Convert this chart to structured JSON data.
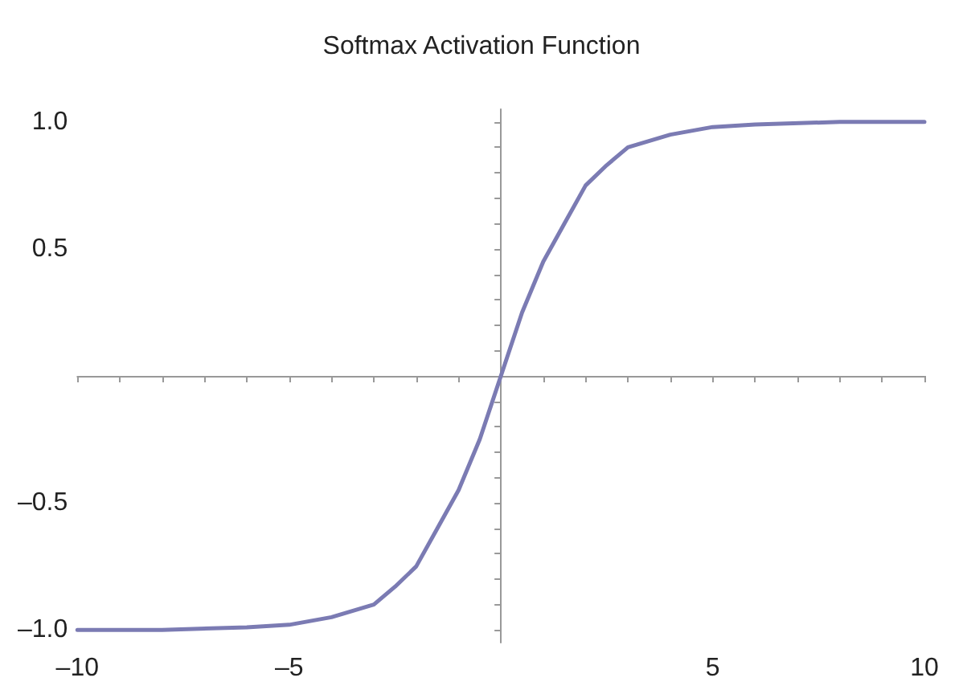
{
  "chart_data": {
    "type": "line",
    "title": "Softmax Activation Function",
    "x": [
      -10,
      -8,
      -6,
      -5,
      -4,
      -3,
      -2.5,
      -2,
      -1.5,
      -1,
      -0.5,
      0,
      0.5,
      1,
      1.5,
      2,
      2.5,
      3,
      4,
      5,
      6,
      8,
      10
    ],
    "series": [
      {
        "color": "#7b7bb3",
        "values": [
          -1,
          -1,
          -0.99,
          -0.98,
          -0.95,
          -0.9,
          -0.83,
          -0.75,
          -0.6,
          -0.45,
          -0.25,
          0,
          0.25,
          0.45,
          0.6,
          0.75,
          0.83,
          0.9,
          0.95,
          0.98,
          0.99,
          1,
          1
        ]
      }
    ],
    "xlim": [
      -10,
      10
    ],
    "xticks": [
      {
        "value": -10,
        "label": "–10"
      },
      {
        "value": -9,
        "label": null
      },
      {
        "value": -8,
        "label": null
      },
      {
        "value": -7,
        "label": null
      },
      {
        "value": -6,
        "label": null
      },
      {
        "value": -5,
        "label": "–5"
      },
      {
        "value": -4,
        "label": null
      },
      {
        "value": -3,
        "label": null
      },
      {
        "value": -2,
        "label": null
      },
      {
        "value": -1,
        "label": null
      },
      {
        "value": 1,
        "label": null
      },
      {
        "value": 2,
        "label": null
      },
      {
        "value": 3,
        "label": null
      },
      {
        "value": 4,
        "label": null
      },
      5,
      {
        "value": 6,
        "label": null
      },
      {
        "value": 7,
        "label": null
      },
      {
        "value": 8,
        "label": null
      },
      {
        "value": 9,
        "label": null
      },
      10
    ],
    "ylim": [
      -1.05,
      1.05
    ],
    "yticks": [
      {
        "value": -1,
        "label": "–1.0"
      },
      {
        "value": -0.9,
        "label": null
      },
      {
        "value": -0.8,
        "label": null
      },
      {
        "value": -0.7,
        "label": null
      },
      {
        "value": -0.6,
        "label": null
      },
      {
        "value": -0.5,
        "label": "–0.5"
      },
      {
        "value": -0.4,
        "label": null
      },
      {
        "value": -0.3,
        "label": null
      },
      {
        "value": -0.2,
        "label": null
      },
      {
        "value": -0.1,
        "label": null
      },
      {
        "value": 0.1,
        "label": null
      },
      {
        "value": 0.2,
        "label": null
      },
      {
        "value": 0.3,
        "label": null
      },
      {
        "value": 0.4,
        "label": null
      },
      {
        "value": 0.5,
        "label": "0.5"
      },
      {
        "value": 0.6,
        "label": null
      },
      {
        "value": 0.7,
        "label": null
      },
      {
        "value": 0.8,
        "label": null
      },
      {
        "value": 0.9,
        "label": null
      },
      {
        "value": 1,
        "label": "1.0"
      }
    ],
    "grid": false,
    "marker": "none",
    "line_style": "solid"
  }
}
